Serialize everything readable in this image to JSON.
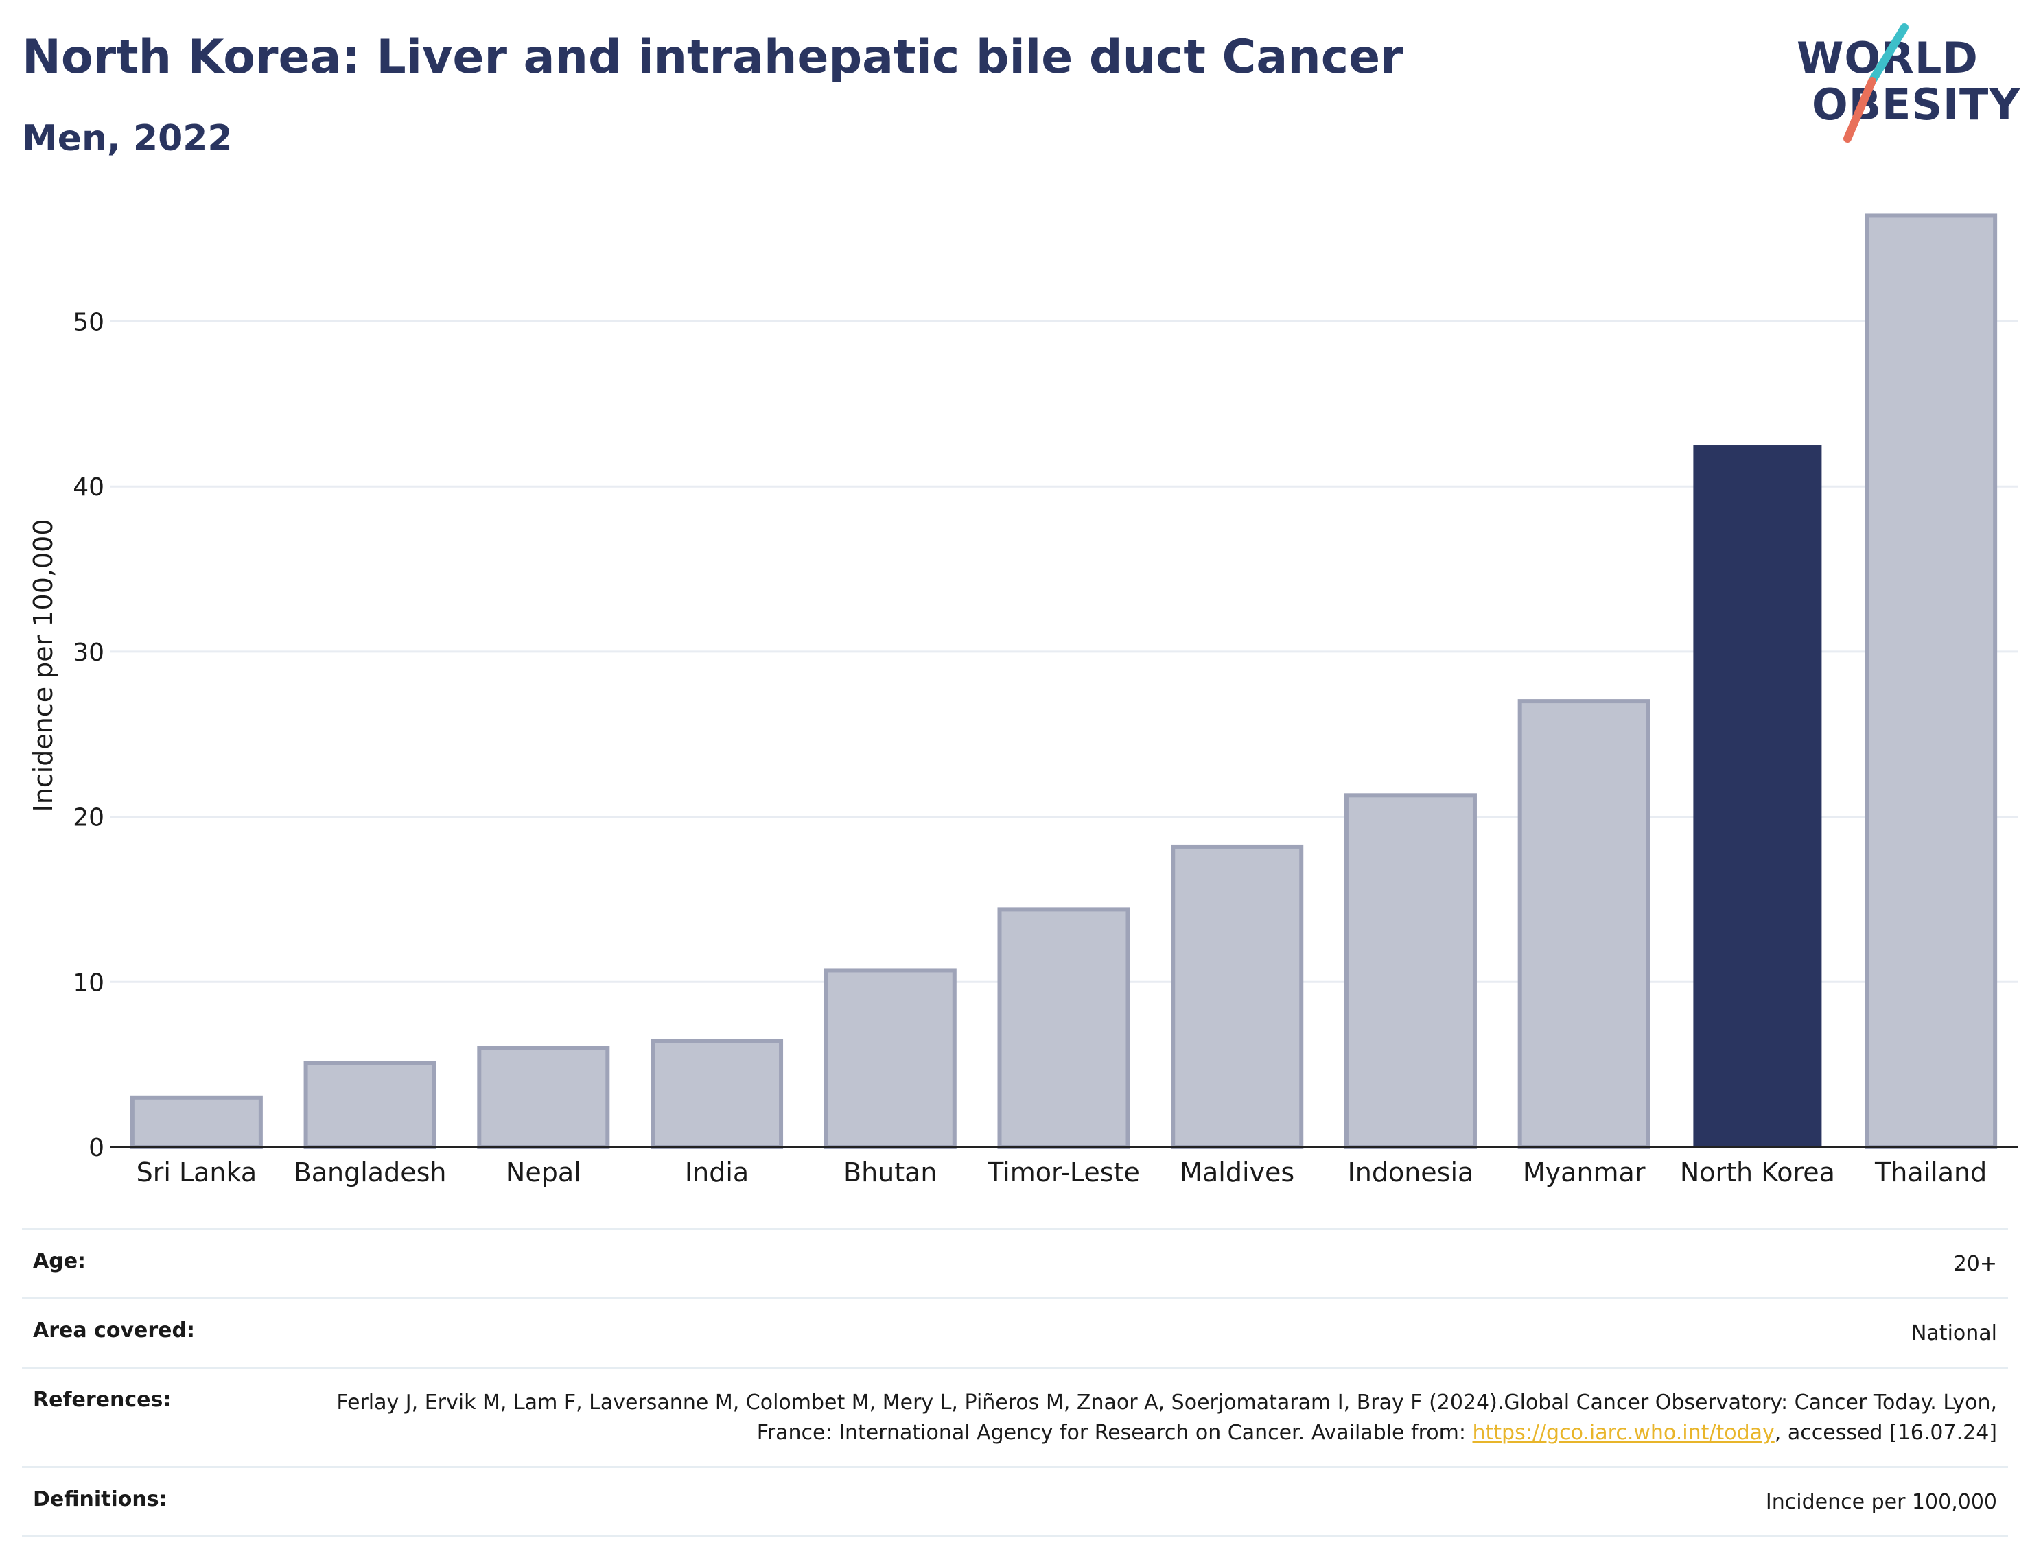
{
  "header": {
    "title": "North Korea: Liver and intrahepatic bile duct Cancer",
    "subtitle": "Men, 2022"
  },
  "logo": {
    "line1": "WORLD",
    "line2": "OBESITY",
    "slash_colors": [
      "#3dbfc9",
      "#e8705a"
    ]
  },
  "colors": {
    "highlight": "#2a3560",
    "other": "#bfc3d0",
    "other_border": "#9ea3b8",
    "grid": "#e8ecf2",
    "link": "#e8b52a"
  },
  "chart_data": {
    "type": "bar",
    "title": "North Korea: Liver and intrahepatic bile duct Cancer",
    "subtitle": "Men, 2022",
    "xlabel": "",
    "ylabel": "Incidence per 100,000",
    "ylim": [
      0,
      57
    ],
    "yticks": [
      0,
      10,
      20,
      30,
      40,
      50
    ],
    "grid": true,
    "highlight": "North Korea",
    "categories": [
      "Sri Lanka",
      "Bangladesh",
      "Nepal",
      "India",
      "Bhutan",
      "Timor-Leste",
      "Maldives",
      "Indonesia",
      "Myanmar",
      "North Korea",
      "Thailand"
    ],
    "values": [
      3.0,
      5.1,
      6.0,
      6.4,
      10.7,
      14.4,
      18.2,
      21.3,
      27.0,
      42.5,
      56.4
    ]
  },
  "meta": {
    "age_label": "Age:",
    "age_value": "20+",
    "area_label": "Area covered:",
    "area_value": "National",
    "references_label": "References:",
    "references_text_1": "Ferlay J, Ervik M, Lam F, Laversanne M, Colombet M, Mery L, Piñeros M, Znaor A, Soerjomataram I, Bray F (2024).Global Cancer Observatory: Cancer Today. Lyon, France: International Agency for Research on Cancer. Available from: ",
    "references_link": "https://gco.iarc.who.int/today",
    "references_text_2": ", accessed [16.07.24]",
    "definitions_label": "Definitions:",
    "definitions_value": "Incidence per 100,000"
  }
}
